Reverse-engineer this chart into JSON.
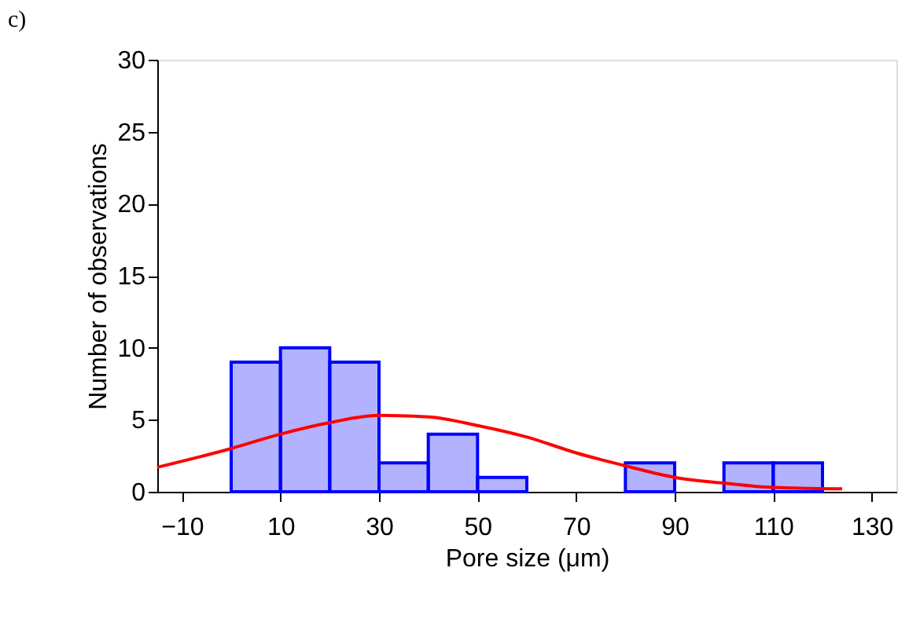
{
  "chart_data": {
    "type": "histogram",
    "title": "c)",
    "xlabel": "Pore size (μm)",
    "ylabel": "Number of observations",
    "bins": [
      0,
      10,
      20,
      30,
      40,
      50,
      60,
      70,
      80,
      90,
      100,
      110,
      120
    ],
    "values": [
      9,
      10,
      9,
      2,
      4,
      1,
      0,
      0,
      2,
      0,
      2,
      2
    ],
    "color": "#0000ff",
    "series": [
      {
        "type": "line",
        "color": "#ff0000",
        "x": [
          -15,
          0,
          10,
          20,
          30,
          40,
          50,
          60,
          70,
          80,
          90,
          100,
          110,
          124
        ],
        "values": [
          1.7,
          3.0,
          4.0,
          4.8,
          5.3,
          5.2,
          4.6,
          3.8,
          2.7,
          1.8,
          1.0,
          0.6,
          0.3,
          0.2
        ]
      }
    ],
    "xlim": [
      -15,
      135
    ],
    "xticks": [
      -10,
      10,
      30,
      50,
      70,
      90,
      110,
      130
    ],
    "ylim": [
      0,
      30
    ],
    "yticks": [
      0,
      5,
      10,
      15,
      20,
      25,
      30
    ],
    "grid": false
  }
}
